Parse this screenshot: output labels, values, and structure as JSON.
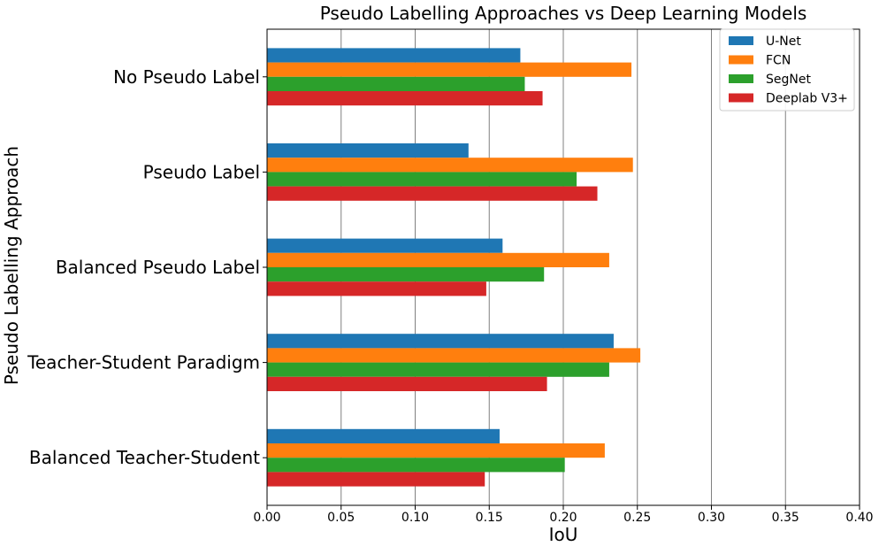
{
  "chart_data": {
    "type": "bar",
    "orientation": "horizontal",
    "title": "Pseudo Labelling Approaches vs Deep Learning Models",
    "xlabel": "IoU",
    "ylabel": "Pseudo Labelling Approach",
    "xlim": [
      0,
      0.4
    ],
    "xticks": [
      "0.00",
      "0.05",
      "0.10",
      "0.15",
      "0.20",
      "0.25",
      "0.30",
      "0.35",
      "0.40"
    ],
    "grid": "vertical",
    "legend_position": "top-right",
    "categories": [
      "No Pseudo Label",
      "Pseudo Label",
      "Balanced Pseudo Label",
      "Teacher-Student Paradigm",
      "Balanced Teacher-Student"
    ],
    "series": [
      {
        "name": "U-Net",
        "color": "#1f77b4",
        "values": [
          0.171,
          0.136,
          0.159,
          0.234,
          0.157
        ]
      },
      {
        "name": "FCN",
        "color": "#ff7f0e",
        "values": [
          0.246,
          0.247,
          0.231,
          0.252,
          0.228
        ]
      },
      {
        "name": "SegNet",
        "color": "#2ca02c",
        "values": [
          0.174,
          0.209,
          0.187,
          0.231,
          0.201
        ]
      },
      {
        "name": "Deeplab V3+",
        "color": "#d62728",
        "values": [
          0.186,
          0.223,
          0.148,
          0.189,
          0.147
        ]
      }
    ]
  }
}
